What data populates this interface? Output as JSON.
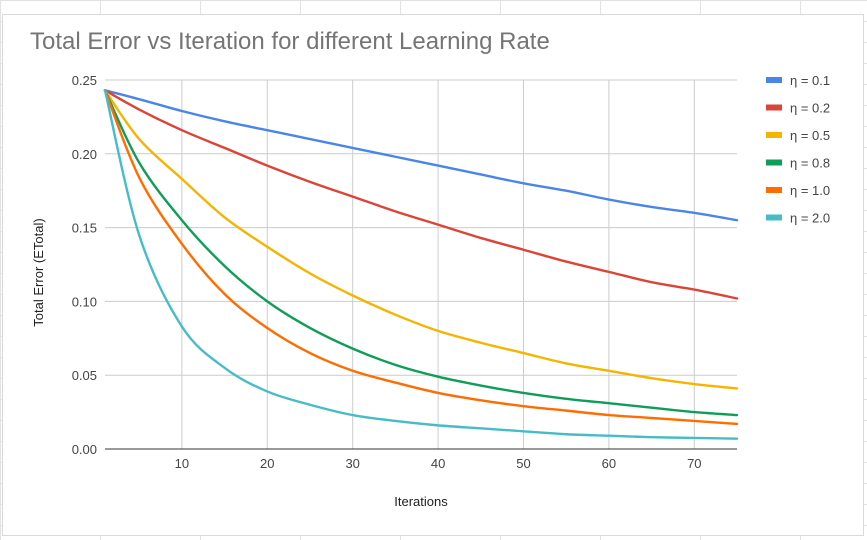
{
  "chart_data": {
    "type": "line",
    "title": "Total Error vs Iteration for different Learning Rate",
    "xlabel": "Iterations",
    "ylabel": "Total Error (ETotal)",
    "xlim": [
      1,
      75
    ],
    "ylim": [
      0,
      0.25
    ],
    "xticks": [
      10,
      20,
      30,
      40,
      50,
      60,
      70
    ],
    "yticks": [
      "0.00",
      "0.05",
      "0.10",
      "0.15",
      "0.20",
      "0.25"
    ],
    "grid": true,
    "legend_position": "right",
    "x": [
      1,
      5,
      10,
      15,
      20,
      25,
      30,
      35,
      40,
      45,
      50,
      55,
      60,
      65,
      70,
      75
    ],
    "series": [
      {
        "name": "η = 0.1",
        "color": "#4a86e8",
        "values": [
          0.243,
          0.237,
          0.229,
          0.222,
          0.216,
          0.21,
          0.204,
          0.198,
          0.192,
          0.186,
          0.18,
          0.175,
          0.169,
          0.164,
          0.16,
          0.155
        ]
      },
      {
        "name": "η = 0.2",
        "color": "#db4437",
        "values": [
          0.243,
          0.23,
          0.216,
          0.204,
          0.192,
          0.181,
          0.171,
          0.161,
          0.152,
          0.143,
          0.135,
          0.127,
          0.12,
          0.113,
          0.108,
          0.102
        ]
      },
      {
        "name": "η = 0.5",
        "color": "#f4b400",
        "values": [
          0.243,
          0.21,
          0.183,
          0.157,
          0.137,
          0.119,
          0.104,
          0.091,
          0.08,
          0.072,
          0.065,
          0.058,
          0.053,
          0.048,
          0.044,
          0.041
        ]
      },
      {
        "name": "η = 0.8",
        "color": "#0f9d58",
        "values": [
          0.243,
          0.194,
          0.155,
          0.124,
          0.1,
          0.082,
          0.068,
          0.057,
          0.049,
          0.043,
          0.038,
          0.034,
          0.031,
          0.028,
          0.025,
          0.023
        ]
      },
      {
        "name": "η = 1.0",
        "color": "#ff6d00",
        "values": [
          0.243,
          0.184,
          0.139,
          0.105,
          0.082,
          0.065,
          0.053,
          0.045,
          0.038,
          0.033,
          0.029,
          0.026,
          0.023,
          0.021,
          0.019,
          0.017
        ]
      },
      {
        "name": "η = 2.0",
        "color": "#46bdc6",
        "values": [
          0.243,
          0.145,
          0.083,
          0.055,
          0.039,
          0.03,
          0.023,
          0.019,
          0.016,
          0.014,
          0.012,
          0.01,
          0.009,
          0.008,
          0.0075,
          0.007
        ]
      }
    ]
  }
}
